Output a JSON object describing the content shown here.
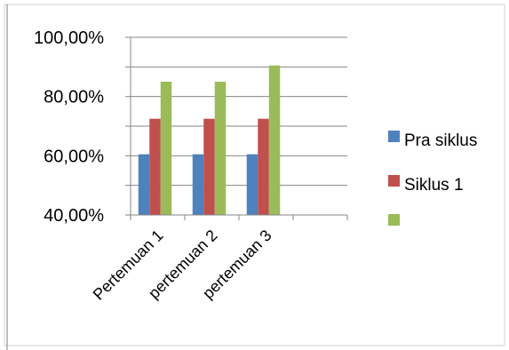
{
  "chart_data": {
    "type": "bar",
    "categories": [
      "Pertemuan 1",
      "pertemuan 2",
      "pertemuan 3",
      ""
    ],
    "series": [
      {
        "name": "Pra siklus",
        "color": "#4f81bd",
        "values": [
          60.5,
          60.5,
          60.5,
          null
        ]
      },
      {
        "name": "Siklus 1",
        "color": "#c0504d",
        "values": [
          72.5,
          72.5,
          72.5,
          null
        ]
      },
      {
        "name": "",
        "color": "#9bbb59",
        "values": [
          85,
          85,
          90.5,
          null
        ]
      }
    ],
    "y_ticks": [
      "100,00%",
      "80,00%",
      "60,00%",
      "40,00%"
    ],
    "y_tick_values": [
      100,
      80,
      60,
      40
    ],
    "ylim": [
      40,
      100
    ],
    "gridlines": [
      40,
      50,
      60,
      70,
      80,
      90,
      100
    ],
    "legend_position": "right",
    "grid": true
  }
}
